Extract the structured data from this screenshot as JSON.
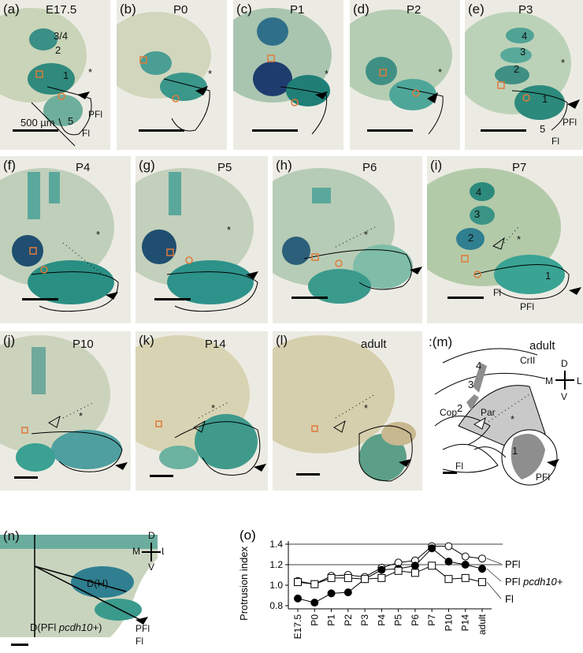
{
  "panels": [
    {
      "label": "(a)",
      "stage": "E17.5"
    },
    {
      "label": "(b)",
      "stage": "P0"
    },
    {
      "label": "(c)",
      "stage": "P1"
    },
    {
      "label": "(d)",
      "stage": "P2"
    },
    {
      "label": "(e)",
      "stage": "P3"
    },
    {
      "label": "(f)",
      "stage": "P4"
    },
    {
      "label": "(g)",
      "stage": "P5"
    },
    {
      "label": "(h)",
      "stage": "P6"
    },
    {
      "label": "(i)",
      "stage": "P7"
    },
    {
      "label": "(j)",
      "stage": "P10"
    },
    {
      "label": "(k)",
      "stage": "P14"
    },
    {
      "label": "(l)",
      "stage": "adult"
    }
  ],
  "scale_bar_label": "500 µm",
  "labels": {
    "a_34": "3/4",
    "one": "1",
    "two": "2",
    "three": "3",
    "four": "4",
    "five": "5",
    "pfl": "PFl",
    "fl": "Fl",
    "asterisk": "*"
  },
  "panel_m": {
    "label": ":(m)",
    "stage": "adult",
    "crii": "CrII",
    "cop": "Cop",
    "par": "Par",
    "compass": {
      "d": "D",
      "v": "V",
      "m": "M",
      "l": "L"
    }
  },
  "panel_n": {
    "label": "(n)",
    "dh": "D(H)",
    "dpfl": "D(PFl ",
    "dpfl_gene": "pcdh10+",
    "dpfl_end": ")",
    "compass": {
      "d": "D",
      "v": "V",
      "m": "M",
      "l": "L"
    }
  },
  "chart_o_label": "(o)",
  "chart_data": {
    "type": "line",
    "ylabel": "Protrusion index",
    "categories": [
      "E17.5",
      "P0",
      "P1",
      "P2",
      "P3",
      "P4",
      "P5",
      "P6",
      "P7",
      "P10",
      "P14",
      "adult"
    ],
    "ylim": [
      0.8,
      1.4
    ],
    "yticks": [
      "0.8",
      "1.0",
      "1.2",
      "1.4"
    ],
    "gridlines": [
      1.2,
      1.4
    ],
    "series": [
      {
        "name": "PFl",
        "marker": "open-circle",
        "values": [
          1.04,
          1.01,
          1.09,
          1.1,
          1.08,
          1.17,
          1.22,
          1.24,
          1.38,
          1.38,
          1.28,
          1.26
        ]
      },
      {
        "name": "PFl pcdh10+",
        "marker": "filled-circle",
        "values": [
          0.87,
          0.83,
          0.92,
          0.93,
          1.06,
          1.15,
          1.16,
          1.19,
          1.36,
          1.23,
          1.2,
          1.16
        ]
      },
      {
        "name": "Fl",
        "marker": "open-square",
        "values": [
          1.03,
          1.01,
          1.07,
          1.07,
          1.06,
          1.07,
          1.14,
          1.12,
          1.19,
          1.06,
          1.07,
          1.03
        ]
      }
    ],
    "legend": {
      "pfl": "PFl",
      "pfl_gene_prefix": "PFl ",
      "pfl_gene": "pcdh10+",
      "fl": "Fl"
    }
  }
}
